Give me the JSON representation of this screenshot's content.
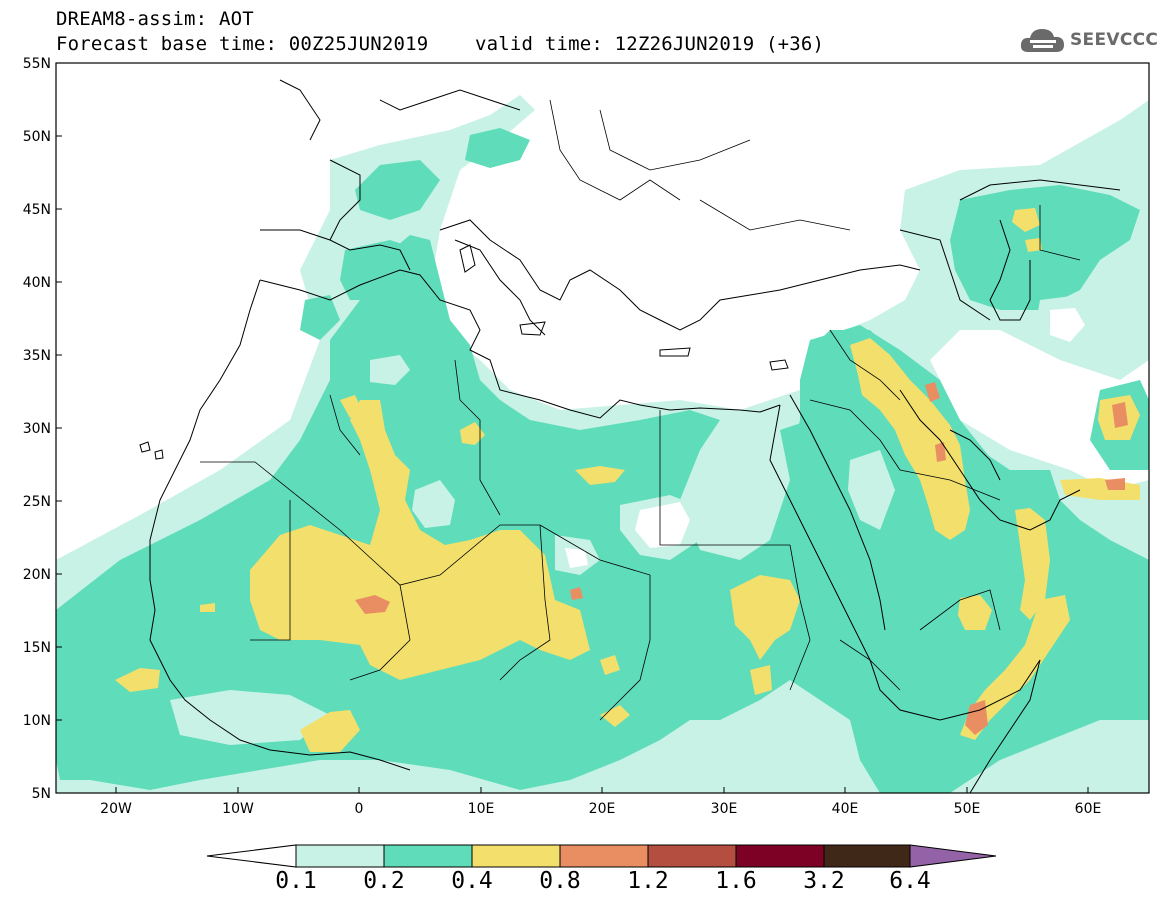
{
  "title": {
    "line1": "DREAM8-assim: AOT",
    "line2": "Forecast base time: 00Z25JUN2019    valid time: 12Z26JUN2019 (+36)"
  },
  "logo": {
    "text": "SEEVCCC",
    "icon": "cloud-icon"
  },
  "map": {
    "lon_range": [
      -25,
      65
    ],
    "lat_range": [
      5,
      55
    ],
    "lat_labels": [
      "55N",
      "50N",
      "45N",
      "40N",
      "35N",
      "30N",
      "25N",
      "20N",
      "15N",
      "10N",
      "5N"
    ],
    "lon_labels": [
      "20W",
      "10W",
      "0",
      "10E",
      "20E",
      "30E",
      "40E",
      "50E",
      "60E"
    ],
    "colors": {
      "c01": "#c8f2e6",
      "c02": "#5fdcb9",
      "c04": "#f3e06c",
      "c08": "#e98e63",
      "c12": "#b44e40",
      "c16": "#7d0025",
      "c32": "#3f2817",
      "c64": "#9463a7"
    }
  },
  "colorbar": {
    "levels": [
      "0.1",
      "0.2",
      "0.4",
      "0.8",
      "1.2",
      "1.6",
      "3.2",
      "6.4"
    ],
    "colors": [
      "#c8f2e6",
      "#5fdcb9",
      "#f3e06c",
      "#e98e63",
      "#b44e40",
      "#7d0025",
      "#3f2817",
      "#9463a7"
    ]
  }
}
